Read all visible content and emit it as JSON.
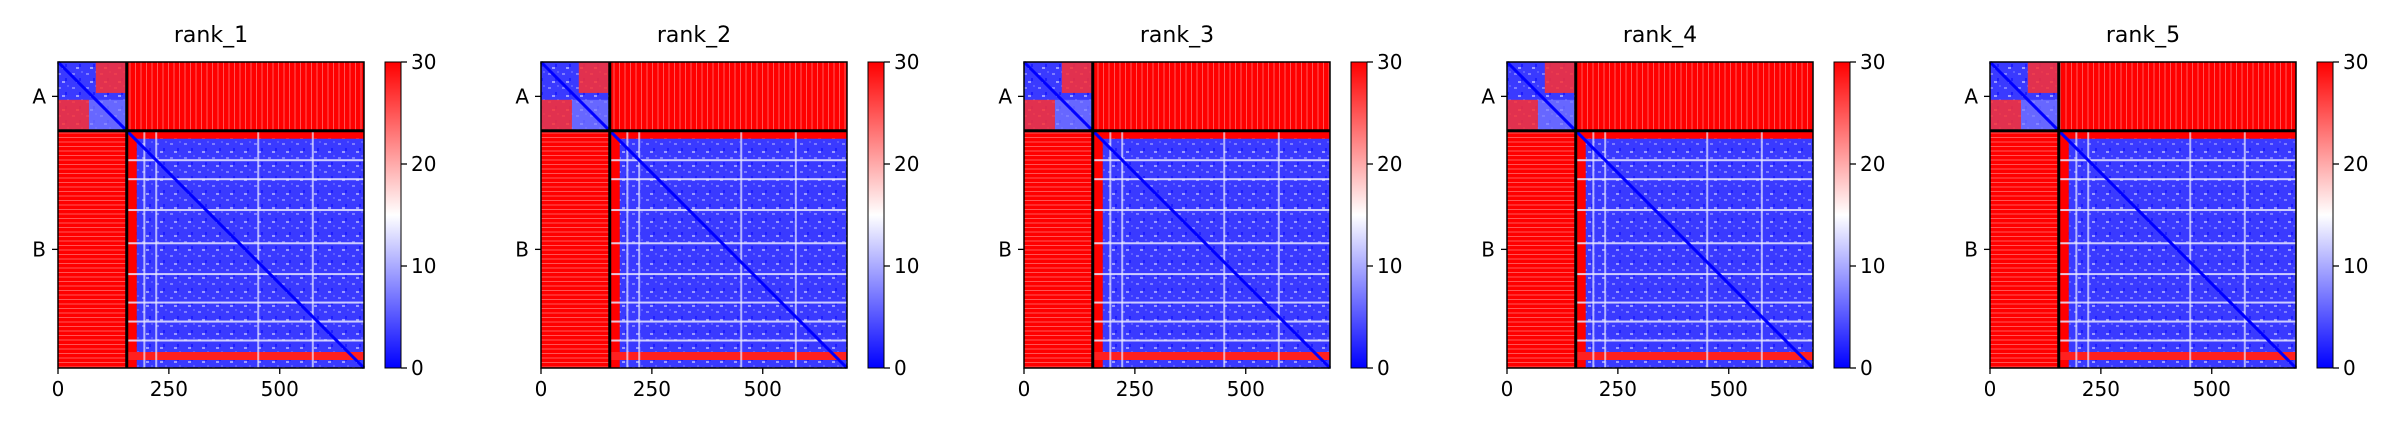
{
  "chart_data": [
    {
      "type": "heatmap",
      "title": "rank_1",
      "chains": [
        {
          "label": "A",
          "start": 0,
          "end": 155
        },
        {
          "label": "B",
          "start": 155,
          "end": 690
        }
      ],
      "x_ticks": [
        0,
        250,
        500
      ],
      "xlim": [
        0,
        690
      ],
      "colorbar": {
        "min": 0,
        "max": 30,
        "ticks": [
          0,
          10,
          20,
          30
        ],
        "colormap": [
          "#0000ff",
          "#ffffff",
          "#ff0000"
        ]
      }
    },
    {
      "type": "heatmap",
      "title": "rank_2",
      "chains": [
        {
          "label": "A",
          "start": 0,
          "end": 155
        },
        {
          "label": "B",
          "start": 155,
          "end": 690
        }
      ],
      "x_ticks": [
        0,
        250,
        500
      ],
      "xlim": [
        0,
        690
      ],
      "colorbar": {
        "min": 0,
        "max": 30,
        "ticks": [
          0,
          10,
          20,
          30
        ],
        "colormap": [
          "#0000ff",
          "#ffffff",
          "#ff0000"
        ]
      }
    },
    {
      "type": "heatmap",
      "title": "rank_3",
      "chains": [
        {
          "label": "A",
          "start": 0,
          "end": 155
        },
        {
          "label": "B",
          "start": 155,
          "end": 690
        }
      ],
      "x_ticks": [
        0,
        250,
        500
      ],
      "xlim": [
        0,
        690
      ],
      "colorbar": {
        "min": 0,
        "max": 30,
        "ticks": [
          0,
          10,
          20,
          30
        ],
        "colormap": [
          "#0000ff",
          "#ffffff",
          "#ff0000"
        ]
      }
    },
    {
      "type": "heatmap",
      "title": "rank_4",
      "chains": [
        {
          "label": "A",
          "start": 0,
          "end": 155
        },
        {
          "label": "B",
          "start": 155,
          "end": 690
        }
      ],
      "x_ticks": [
        0,
        250,
        500
      ],
      "xlim": [
        0,
        690
      ],
      "colorbar": {
        "min": 0,
        "max": 30,
        "ticks": [
          0,
          10,
          20,
          30
        ],
        "colormap": [
          "#0000ff",
          "#ffffff",
          "#ff0000"
        ]
      }
    },
    {
      "type": "heatmap",
      "title": "rank_5",
      "chains": [
        {
          "label": "A",
          "start": 0,
          "end": 155
        },
        {
          "label": "B",
          "start": 155,
          "end": 690
        }
      ],
      "x_ticks": [
        0,
        250,
        500
      ],
      "xlim": [
        0,
        690
      ],
      "colorbar": {
        "min": 0,
        "max": 30,
        "ticks": [
          0,
          10,
          20,
          30
        ],
        "colormap": [
          "#0000ff",
          "#ffffff",
          "#ff0000"
        ]
      }
    }
  ]
}
